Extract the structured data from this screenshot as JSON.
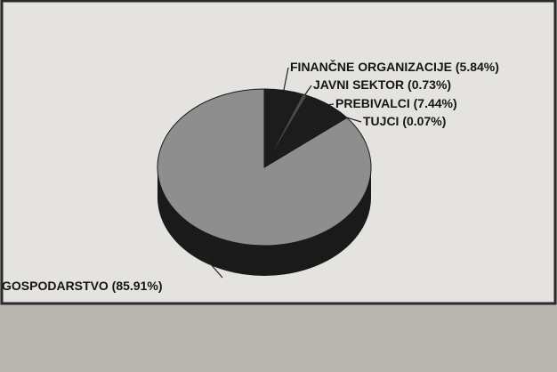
{
  "chart_data": {
    "type": "pie",
    "style": "3d",
    "title": "",
    "slices": [
      {
        "label": "GOSPODARSTVO (85.91%)",
        "value": 85.91,
        "color": "#8e8e8e"
      },
      {
        "label": "FINANČNE ORGANIZACIJE (5.84%)",
        "value": 5.84,
        "color": "#1c1c1c"
      },
      {
        "label": "JAVNI SEKTOR (0.73%)",
        "value": 0.73,
        "color": "#4a4a4a"
      },
      {
        "label": "PREBIVALCI (7.44%)",
        "value": 7.44,
        "color": "#1c1c1c"
      },
      {
        "label": "TUJCI (0.07%)",
        "value": 0.07,
        "color": "#222222"
      }
    ]
  },
  "colors": {
    "paper": "#e4e3df",
    "frame": "#2a2a2a",
    "pie_side": "#1a1a1a",
    "leader": "#202020"
  }
}
